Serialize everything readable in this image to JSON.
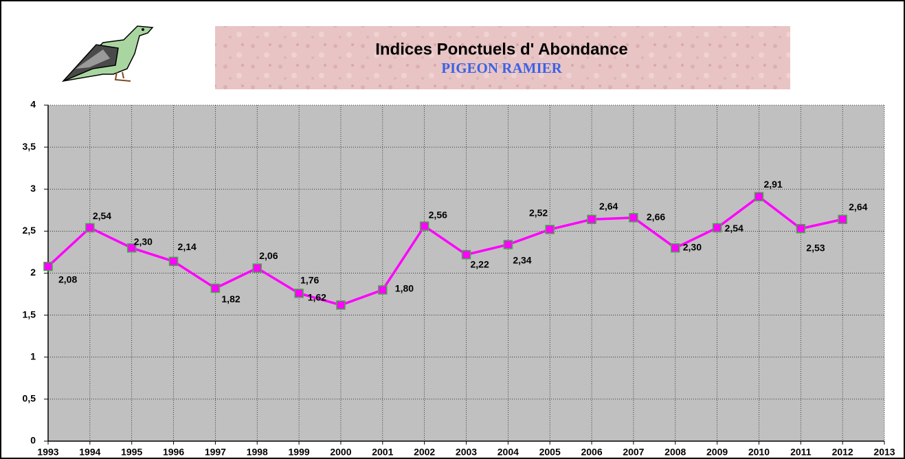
{
  "chart_data": {
    "type": "line",
    "title": "Indices  Ponctuels  d' Abondance",
    "subtitle": "PIGEON  RAMIER",
    "x": [
      1993,
      1994,
      1995,
      1996,
      1997,
      1998,
      1999,
      2000,
      2001,
      2002,
      2003,
      2004,
      2005,
      2006,
      2007,
      2008,
      2009,
      2010,
      2011,
      2012
    ],
    "series": [
      {
        "color": "#ff00ff",
        "values": [
          2.08,
          2.54,
          2.3,
          2.14,
          1.82,
          2.06,
          1.76,
          1.62,
          1.8,
          2.56,
          2.22,
          2.34,
          2.52,
          2.64,
          2.66,
          2.3,
          2.54,
          2.91,
          2.53,
          2.64
        ],
        "value_labels": [
          "2,08",
          "2,54",
          "2,30",
          "2,14",
          "1,82",
          "2,06",
          "1,76",
          "1,62",
          "1,80",
          "2,56",
          "2,22",
          "2,34",
          "2,52",
          "2,64",
          "2,66",
          "2,30",
          "2,54",
          "2,91",
          "2,53",
          "2,64"
        ]
      }
    ],
    "xlim": [
      1993,
      2013
    ],
    "xticks": [
      1993,
      1994,
      1995,
      1996,
      1997,
      1998,
      1999,
      2000,
      2001,
      2002,
      2003,
      2004,
      2005,
      2006,
      2007,
      2008,
      2009,
      2010,
      2011,
      2012,
      2013
    ],
    "ylim": [
      0,
      4
    ],
    "yticks": [
      0,
      {
        "value": 0.5,
        "label": "0,5"
      },
      1,
      {
        "value": 1.5,
        "label": "1,5"
      },
      2,
      {
        "value": 2.5,
        "label": "2,5"
      },
      3,
      {
        "value": 3.5,
        "label": "3,5"
      },
      4
    ],
    "grid": true
  }
}
